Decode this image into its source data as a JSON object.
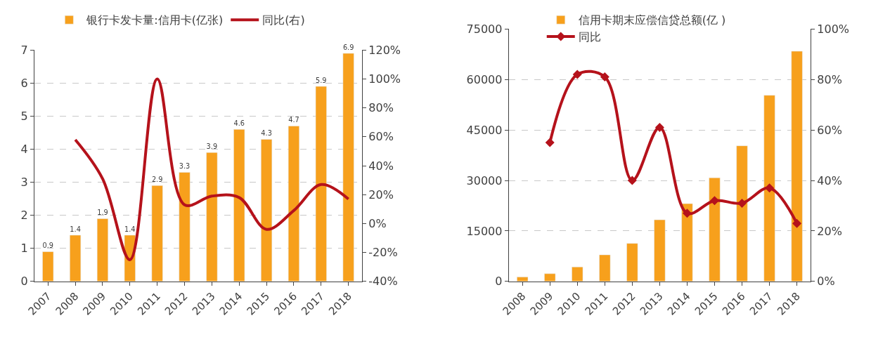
{
  "chart_data": [
    {
      "type": "bar",
      "categories": [
        "2007",
        "2008",
        "2009",
        "2010",
        "2011",
        "2012",
        "2013",
        "2014",
        "2015",
        "2016",
        "2017",
        "2018"
      ],
      "series": [
        {
          "name": "银行卡发卡量:信用卡(亿张)",
          "color": "#f7a01c",
          "values": [
            0.9,
            1.4,
            1.9,
            1.4,
            2.9,
            3.3,
            3.9,
            4.6,
            4.3,
            4.7,
            5.9,
            6.9
          ],
          "value_labels": [
            "0.9",
            "1.4",
            "1.9",
            "1.4",
            "2.9",
            "3.3",
            "3.9",
            "4.6",
            "4.3",
            "4.7",
            "5.9",
            "6.9"
          ]
        },
        {
          "name": "同比(右)",
          "type": "line",
          "axis": "y2",
          "color": "#b5121b",
          "marker": "none",
          "values": [
            null,
            58,
            31,
            -25,
            100,
            13,
            19,
            18,
            -4,
            9,
            27,
            17
          ]
        }
      ],
      "ylim": [
        0,
        7
      ],
      "yticks": [
        0,
        1,
        2,
        3,
        4,
        5,
        6,
        7
      ],
      "y2lim": [
        -40,
        120
      ],
      "y2ticks": [
        {
          "value": -40,
          "label": "-40%"
        },
        {
          "value": -20,
          "label": "-20%"
        },
        {
          "value": 0,
          "label": "0%"
        },
        {
          "value": 20,
          "label": "20%"
        },
        {
          "value": 40,
          "label": "40%"
        },
        {
          "value": 60,
          "label": "60%"
        },
        {
          "value": 80,
          "label": "80%"
        },
        {
          "value": 100,
          "label": "100%"
        },
        {
          "value": 120,
          "label": "120%"
        }
      ],
      "grid": "y",
      "legend": "top"
    },
    {
      "type": "bar",
      "categories": [
        "2008",
        "2009",
        "2010",
        "2011",
        "2012",
        "2013",
        "2014",
        "2015",
        "2016",
        "2017",
        "2018"
      ],
      "series": [
        {
          "name": "信用卡期末应偿信贷总额(亿 )",
          "color": "#f7a01c",
          "values": [
            1300,
            2300,
            4300,
            7900,
            11300,
            18300,
            23100,
            30800,
            40300,
            55300,
            68400
          ]
        },
        {
          "name": "同比",
          "type": "line",
          "axis": "y2",
          "color": "#b5121b",
          "marker": "diamond",
          "values": [
            null,
            55,
            82,
            81,
            40,
            61,
            27,
            32,
            31,
            37,
            23
          ]
        }
      ],
      "ylim": [
        0,
        75000
      ],
      "yticks": [
        0,
        15000,
        30000,
        45000,
        60000,
        75000
      ],
      "y2lim": [
        0,
        100
      ],
      "y2ticks": [
        {
          "value": 0,
          "label": "0%"
        },
        {
          "value": 20,
          "label": "20%"
        },
        {
          "value": 40,
          "label": "40%"
        },
        {
          "value": 60,
          "label": "60%"
        },
        {
          "value": 80,
          "label": "80%"
        },
        {
          "value": 100,
          "label": "100%"
        }
      ],
      "grid": "y",
      "legend": "top left"
    }
  ]
}
